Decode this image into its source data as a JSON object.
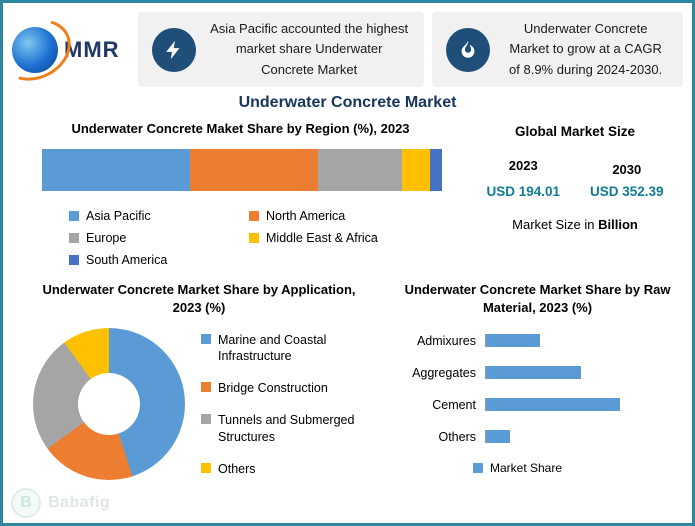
{
  "colors": {
    "border_teal": "#2E86A0",
    "navy_title": "#16365C",
    "value_teal": "#0F7C93",
    "icon_circle_navy": "#1F4E79"
  },
  "header": {
    "logo_text": "MMR",
    "callouts": [
      {
        "icon": "lightning-icon",
        "text": "Asia Pacific accounted the highest market share Underwater Concrete Market"
      },
      {
        "icon": "flame-icon",
        "text": "Underwater Concrete Market to grow at a CAGR of 8.9% during 2024-2030."
      }
    ]
  },
  "page_title": "Underwater Concrete Market",
  "region_chart": {
    "title": "Underwater Concrete Maket Share by Region (%), 2023",
    "chart_data": {
      "type": "bar",
      "subtype": "stacked-horizontal",
      "title": "Underwater Concrete Maket Share by Region (%), 2023",
      "series": [
        {
          "name": "Asia Pacific",
          "value": 37,
          "color": "#5B9BD5"
        },
        {
          "name": "North America",
          "value": 32,
          "color": "#ED7D31"
        },
        {
          "name": "Europe",
          "value": 21,
          "color": "#A5A5A5"
        },
        {
          "name": "Middle East & Africa",
          "value": 7,
          "color": "#FFC000"
        },
        {
          "name": "South America",
          "value": 3,
          "color": "#4472C4"
        }
      ],
      "xlim": [
        0,
        100
      ],
      "legend_position": "bottom"
    }
  },
  "market_size": {
    "title": "Global Market Size",
    "years": [
      {
        "year": "2023",
        "value": "USD 194.01"
      },
      {
        "year": "2030",
        "value": "USD 352.39"
      }
    ],
    "note_prefix": "Market Size in ",
    "note_bold": "Billion"
  },
  "application_chart": {
    "title": "Underwater Concrete Market Share by Application, 2023 (%)",
    "chart_data": {
      "type": "pie",
      "subtype": "donut",
      "title": "Underwater Concrete Market Share by Application, 2023 (%)",
      "slices": [
        {
          "name": "Marine and Coastal Infrastructure",
          "value": 45,
          "color": "#5B9BD5"
        },
        {
          "name": "Bridge Construction",
          "value": 20,
          "color": "#ED7D31"
        },
        {
          "name": "Tunnels and Submerged Structures",
          "value": 25,
          "color": "#A5A5A5"
        },
        {
          "name": "Others",
          "value": 10,
          "color": "#FFC000"
        }
      ],
      "legend_position": "right"
    }
  },
  "raw_material_chart": {
    "title": "Underwater Concrete Market Share by Raw Material, 2023 (%)",
    "chart_data": {
      "type": "bar",
      "subtype": "horizontal",
      "title": "Underwater Concrete Market Share by Raw Material, 2023 (%)",
      "categories": [
        "Admixures",
        "Aggregates",
        "Cement",
        "Others"
      ],
      "values": [
        18,
        32,
        45,
        8
      ],
      "xlim": [
        0,
        50
      ],
      "bar_color": "#5B9BD5",
      "legend": [
        {
          "name": "Market Share",
          "color": "#5B9BD5"
        }
      ],
      "legend_position": "bottom"
    }
  },
  "watermark": {
    "initial": "B",
    "text": "Babafig"
  }
}
